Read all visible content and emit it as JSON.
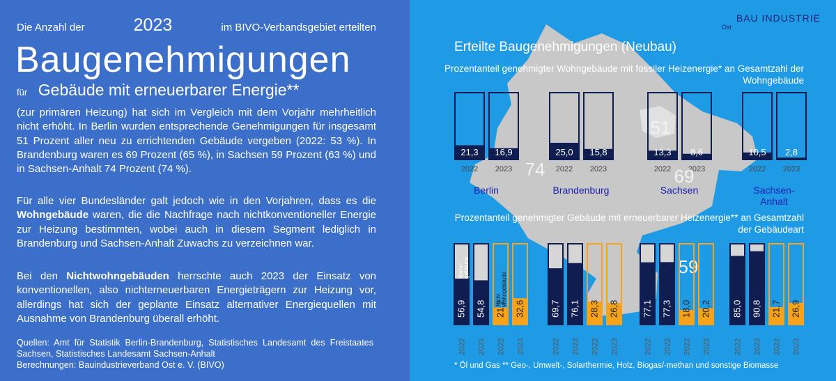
{
  "text": {
    "intro_pre": "Die Anzahl der",
    "intro_year": "2023",
    "intro_post": "im BIVO-Verbandsgebiet erteilten",
    "headline": "Baugenehmigungen",
    "sub_small": "für",
    "sub_big": "Gebäude mit erneuerbarer Energie**",
    "para1": "(zur primären Heizung) hat sich im Vergleich mit dem Vorjahr mehrheitlich nicht erhöht. In Berlin wurden entsprechende Genehmigungen für insgesamt 51 Prozent aller neu zu errichtenden Gebäude vergeben (2022: 53 %). In Brandenburg waren es 69 Prozent (65 %), in Sachsen 59 Prozent (63 %) und in Sachsen-Anhalt 74 Prozent (74 %).",
    "para2_a": "Für alle vier Bundesländer galt jedoch wie in den Vorjahren, dass es die",
    "para2_bold": "Wohngebäude",
    "para2_b": "waren, die die Nachfrage nach nichtkonventioneller Energie zur Heizung bestimmten, wobei auch in diesem Segment lediglich in Brandenburg und Sachsen-Anhalt Zuwachs zu verzeichnen war.",
    "para3_a": "Bei den",
    "para3_bold": "Nichtwohngebäuden",
    "para3_b": "herrschte auch 2023 der Einsatz von konventionellen, also nichterneuerbaren Energieträgern zur Heizung vor, allerdings hat sich der geplante Einsatz alternativer Energiequellen mit Ausnahme von Brandenburg überall erhöht.",
    "sources_1": "Quellen: Amt für Statistik Berlin-Brandenburg, Statistisches Landesamt des Freistaates Sachsen, Statistisches Landesamt Sachsen-Anhalt",
    "sources_2": "Berechnungen: Bauindustrieverband Ost e. V. (BIVO)",
    "brand": "BAU INDUSTRIE",
    "brand_sub": "Ost",
    "footnote": "* Öl und Gas ** Geo-, Umwelt-, Solarthermie, Holz, Biogas/-methan und sonstige Biomasse"
  },
  "colors": {
    "left_bg": "#3c6fc9",
    "right_bg": "#1f9be6",
    "map": "#c8c8c8",
    "navy": "#0f1d50",
    "orange": "#f7a21b",
    "state_label": "#1a1fb0"
  },
  "chart_data": [
    {
      "type": "bar",
      "title": "Erteilte Baugenehmigungen (Neubau)",
      "subtitle": "Prozentanteil genehmigter Wohngebäude mit fossiler Heizenergie* an Gesamtzahl der Wohngebäude",
      "categories": [
        "Berlin",
        "Brandenburg",
        "Sachsen",
        "Sachsen-Anhalt"
      ],
      "category_labels": [
        "Berlin",
        "Brandenburg",
        "Sachsen",
        "Sachsen- Anhalt"
      ],
      "series": [
        {
          "name": "2022",
          "values": [
            21.3,
            25.0,
            13.3,
            10.5
          ],
          "labels": [
            "21,3",
            "25,0",
            "13,3",
            "10,5"
          ]
        },
        {
          "name": "2023",
          "values": [
            16.9,
            15.8,
            8.6,
            2.8
          ],
          "labels": [
            "16,9",
            "15,8",
            "8,6",
            "2,8"
          ]
        }
      ],
      "ylim": [
        0,
        100
      ]
    },
    {
      "type": "bar",
      "subtitle": "Prozentanteil genehmigter Gebäude mit erneuerbarer Heizenergie** an Gesamtzahl der Gebäudeart",
      "categories": [
        "Berlin",
        "Brandenburg",
        "Sachsen",
        "Sachsen-Anhalt"
      ],
      "x": [
        "2022",
        "2023",
        "2022",
        "2023"
      ],
      "series": [
        {
          "name": "Wohngebäude",
          "values": [
            [
              56.9,
              54.8
            ],
            [
              69.7,
              76.1
            ],
            [
              77.1,
              77.3
            ],
            [
              85.0,
              90.8
            ]
          ],
          "labels": [
            [
              "56,9",
              "54,8"
            ],
            [
              "69,7",
              "76,1"
            ],
            [
              "77,1",
              "77,3"
            ],
            [
              "85,0",
              "90,8"
            ]
          ]
        },
        {
          "name": "Nicht wohngebäude",
          "values": [
            [
              21.2,
              32.6
            ],
            [
              28.3,
              26.8
            ],
            [
              18.0,
              20.2
            ],
            [
              21.7,
              26.9
            ]
          ],
          "labels": [
            [
              "21,2",
              "32,6"
            ],
            [
              "28,3",
              "26,8"
            ],
            [
              "18,0",
              "20,2"
            ],
            [
              "21,7",
              "26,9"
            ]
          ]
        }
      ],
      "ylim": [
        0,
        100
      ]
    }
  ],
  "map_labels": [
    "74",
    "51",
    "69",
    "59"
  ]
}
